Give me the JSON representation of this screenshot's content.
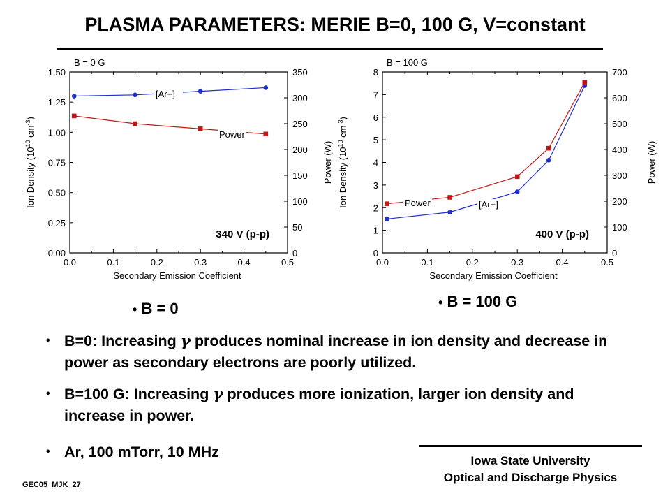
{
  "title": "PLASMA PARAMETERS: MERIE B=0, 100 G, V=constant",
  "chart_data": [
    {
      "type": "line",
      "corner_label": "B = 0 G",
      "inner_label": "340 V (p-p)",
      "xlabel": "Secondary Emission Coefficient",
      "ylabel_left": "Ion Density (10",
      "ylabel_left_exp": "10",
      "ylabel_left_unit": " cm",
      "ylabel_left_exp2": "-3",
      "ylabel_left_close": ")",
      "ylabel_right": "Power (W)",
      "xlim": [
        0,
        0.5
      ],
      "ylim_left": [
        0,
        1.5
      ],
      "ylim_right": [
        0,
        350
      ],
      "xticks": [
        "0.0",
        "0.1",
        "0.2",
        "0.3",
        "0.4",
        "0.5"
      ],
      "yticks_left": [
        "0.00",
        "0.25",
        "0.50",
        "0.75",
        "1.00",
        "1.25",
        "1.50"
      ],
      "yticks_right": [
        "0",
        "50",
        "100",
        "150",
        "200",
        "250",
        "300",
        "350"
      ],
      "series": [
        {
          "name": "[Ar+]",
          "axis": "left",
          "color": "#1f2fd0",
          "marker": "circle",
          "x": [
            0.01,
            0.15,
            0.3,
            0.45
          ],
          "y": [
            1.3,
            1.31,
            1.34,
            1.37
          ]
        },
        {
          "name": "Power",
          "axis": "right",
          "color": "#c01818",
          "marker": "square",
          "x": [
            0.01,
            0.15,
            0.3,
            0.45
          ],
          "y": [
            265,
            250,
            240,
            230
          ]
        }
      ]
    },
    {
      "type": "line",
      "corner_label": "B = 100 G",
      "inner_label": "400 V (p-p)",
      "xlabel": "Secondary Emission Coefficient",
      "ylabel_left": "Ion Density (10",
      "ylabel_left_exp": "10",
      "ylabel_left_unit": " cm",
      "ylabel_left_exp2": "-3",
      "ylabel_left_close": ")",
      "ylabel_right": "Power (W)",
      "xlim": [
        0,
        0.5
      ],
      "ylim_left": [
        0,
        8
      ],
      "ylim_right": [
        0,
        700
      ],
      "xticks": [
        "0.0",
        "0.1",
        "0.2",
        "0.3",
        "0.4",
        "0.5"
      ],
      "yticks_left": [
        "0",
        "1",
        "2",
        "3",
        "4",
        "5",
        "6",
        "7",
        "8"
      ],
      "yticks_right": [
        "0",
        "100",
        "200",
        "300",
        "400",
        "500",
        "600",
        "700"
      ],
      "series": [
        {
          "name": "[Ar+]",
          "axis": "left",
          "color": "#1f2fd0",
          "marker": "circle",
          "x": [
            0.01,
            0.15,
            0.3,
            0.37,
            0.45
          ],
          "y": [
            1.5,
            1.8,
            2.7,
            4.1,
            7.4
          ]
        },
        {
          "name": "Power",
          "axis": "right",
          "color": "#c01818",
          "marker": "square",
          "x": [
            0.01,
            0.15,
            0.3,
            0.37,
            0.45
          ],
          "y": [
            190,
            215,
            295,
            405,
            660
          ]
        }
      ]
    }
  ],
  "captions": {
    "left": "B = 0",
    "right": "B = 100 G",
    "dot": "•"
  },
  "bullets": [
    {
      "dot": "•",
      "pre": "B=0: Increasing ",
      "gamma": "γ",
      "post": " produces nominal increase in ion density and decrease in power as secondary electrons are poorly utilized."
    },
    {
      "dot": "•",
      "pre": "B=100 G: Increasing ",
      "gamma": "γ",
      "post": " produces more ionization, larger ion density and increase in power."
    },
    {
      "dot": "•",
      "pre": "Ar, 100 mTorr, 10 MHz",
      "gamma": "",
      "post": ""
    }
  ],
  "footer": {
    "line1": "Iowa State University",
    "line2": "Optical and Discharge Physics"
  },
  "slide_id": "GEC05_MJK_27"
}
